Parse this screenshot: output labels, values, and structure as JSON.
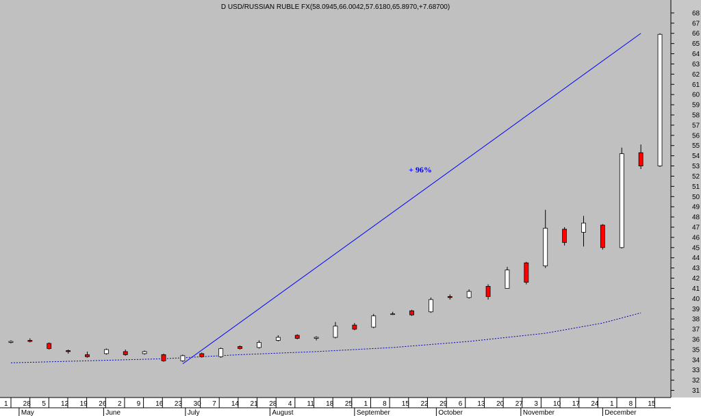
{
  "chart_data": {
    "type": "candlestick",
    "title": "D USD/RUSSIAN RUBLE FX(58.0945,66.0042,57.6180,65.8970,+7.68700)",
    "annotation": "+ 96%",
    "ylim": [
      30.5,
      69
    ],
    "y_ticks": [
      31,
      32,
      33,
      34,
      35,
      36,
      37,
      38,
      39,
      40,
      41,
      42,
      43,
      44,
      45,
      46,
      47,
      48,
      49,
      50,
      51,
      52,
      53,
      54,
      55,
      56,
      57,
      58,
      59,
      60,
      61,
      62,
      63,
      64,
      65,
      66,
      67,
      68
    ],
    "x_day_ticks": [
      "1",
      "28",
      "5",
      "12",
      "19",
      "26",
      "2",
      "9",
      "16",
      "23",
      "30",
      "7",
      "14",
      "21",
      "28",
      "4",
      "11",
      "18",
      "25",
      "1",
      "8",
      "15",
      "22",
      "29",
      "6",
      "13",
      "20",
      "27",
      "3",
      "10",
      "17",
      "24",
      "1",
      "8",
      "15"
    ],
    "x_month_labels": [
      "May",
      "June",
      "July",
      "August",
      "September",
      "October",
      "November",
      "December"
    ],
    "grid": false,
    "colors": {
      "background": "#c0c0c0",
      "up": "#ffffff",
      "down": "#ff0000",
      "trendline": "#0000ff",
      "moving_average": "#0000aa",
      "annotation": "#0000ff"
    },
    "trendline": {
      "from": {
        "date": "2014-06-30",
        "value": 33.6
      },
      "to": {
        "date": "2014-12-15",
        "value": 66.0
      }
    },
    "moving_average": [
      {
        "date": "2014-04-28",
        "value": 33.7
      },
      {
        "date": "2014-05-26",
        "value": 33.9
      },
      {
        "date": "2014-06-23",
        "value": 34.1
      },
      {
        "date": "2014-07-21",
        "value": 34.5
      },
      {
        "date": "2014-08-18",
        "value": 34.8
      },
      {
        "date": "2014-09-15",
        "value": 35.2
      },
      {
        "date": "2014-10-13",
        "value": 35.8
      },
      {
        "date": "2014-11-10",
        "value": 36.6
      },
      {
        "date": "2014-12-01",
        "value": 37.6
      },
      {
        "date": "2014-12-15",
        "value": 38.6
      }
    ],
    "candles": [
      {
        "date": "2014-04-28",
        "open": 35.7,
        "high": 35.9,
        "low": 35.6,
        "close": 35.8
      },
      {
        "date": "2014-05-05",
        "open": 35.9,
        "high": 36.1,
        "low": 35.7,
        "close": 35.8
      },
      {
        "date": "2014-05-12",
        "open": 35.6,
        "high": 35.7,
        "low": 35.0,
        "close": 35.1
      },
      {
        "date": "2014-05-19",
        "open": 34.9,
        "high": 35.0,
        "low": 34.6,
        "close": 34.8
      },
      {
        "date": "2014-05-26",
        "open": 34.5,
        "high": 34.8,
        "low": 34.2,
        "close": 34.3
      },
      {
        "date": "2014-06-02",
        "open": 34.6,
        "high": 35.1,
        "low": 34.5,
        "close": 35.0
      },
      {
        "date": "2014-06-09",
        "open": 34.8,
        "high": 35.0,
        "low": 34.4,
        "close": 34.5
      },
      {
        "date": "2014-06-16",
        "open": 34.6,
        "high": 34.9,
        "low": 34.5,
        "close": 34.8
      },
      {
        "date": "2014-06-23",
        "open": 34.5,
        "high": 34.6,
        "low": 33.8,
        "close": 33.9
      },
      {
        "date": "2014-06-30",
        "open": 33.9,
        "high": 34.5,
        "low": 33.8,
        "close": 34.4
      },
      {
        "date": "2014-07-07",
        "open": 34.6,
        "high": 34.7,
        "low": 34.2,
        "close": 34.3
      },
      {
        "date": "2014-07-14",
        "open": 34.3,
        "high": 35.2,
        "low": 34.2,
        "close": 35.1
      },
      {
        "date": "2014-07-21",
        "open": 35.3,
        "high": 35.4,
        "low": 35.0,
        "close": 35.1
      },
      {
        "date": "2014-07-28",
        "open": 35.2,
        "high": 35.9,
        "low": 35.1,
        "close": 35.7
      },
      {
        "date": "2014-08-04",
        "open": 35.9,
        "high": 36.4,
        "low": 35.8,
        "close": 36.2
      },
      {
        "date": "2014-08-11",
        "open": 36.4,
        "high": 36.5,
        "low": 36.0,
        "close": 36.1
      },
      {
        "date": "2014-08-18",
        "open": 36.1,
        "high": 36.3,
        "low": 35.9,
        "close": 36.2
      },
      {
        "date": "2014-08-25",
        "open": 36.2,
        "high": 37.7,
        "low": 36.1,
        "close": 37.3
      },
      {
        "date": "2014-09-01",
        "open": 37.4,
        "high": 37.6,
        "low": 36.9,
        "close": 37.0
      },
      {
        "date": "2014-09-08",
        "open": 37.2,
        "high": 38.5,
        "low": 37.1,
        "close": 38.3
      },
      {
        "date": "2014-09-15",
        "open": 38.5,
        "high": 38.7,
        "low": 38.4,
        "close": 38.5
      },
      {
        "date": "2014-09-22",
        "open": 38.8,
        "high": 38.9,
        "low": 38.3,
        "close": 38.4
      },
      {
        "date": "2014-09-29",
        "open": 38.7,
        "high": 40.1,
        "low": 38.6,
        "close": 39.9
      },
      {
        "date": "2014-10-06",
        "open": 40.2,
        "high": 40.4,
        "low": 39.9,
        "close": 40.1
      },
      {
        "date": "2014-10-13",
        "open": 40.1,
        "high": 40.9,
        "low": 40.0,
        "close": 40.7
      },
      {
        "date": "2014-10-20",
        "open": 41.2,
        "high": 41.4,
        "low": 39.9,
        "close": 40.2
      },
      {
        "date": "2014-10-27",
        "open": 41.0,
        "high": 43.1,
        "low": 41.0,
        "close": 42.8
      },
      {
        "date": "2014-11-03",
        "open": 43.5,
        "high": 43.6,
        "low": 41.4,
        "close": 41.6
      },
      {
        "date": "2014-11-10",
        "open": 43.2,
        "high": 48.7,
        "low": 43.0,
        "close": 46.9
      },
      {
        "date": "2014-11-17",
        "open": 46.8,
        "high": 47.0,
        "low": 45.2,
        "close": 45.5
      },
      {
        "date": "2014-11-24",
        "open": 46.5,
        "high": 48.1,
        "low": 45.1,
        "close": 47.4
      },
      {
        "date": "2014-12-01",
        "open": 47.2,
        "high": 47.3,
        "low": 44.8,
        "close": 45.0
      },
      {
        "date": "2014-12-08",
        "open": 45.0,
        "high": 54.8,
        "low": 44.9,
        "close": 54.2
      },
      {
        "date": "2014-12-15",
        "open": 54.3,
        "high": 55.1,
        "low": 52.7,
        "close": 53.0
      },
      {
        "date": "2014-12-22",
        "open": 53.0,
        "high": 66.0,
        "low": 52.9,
        "close": 65.9
      }
    ]
  }
}
